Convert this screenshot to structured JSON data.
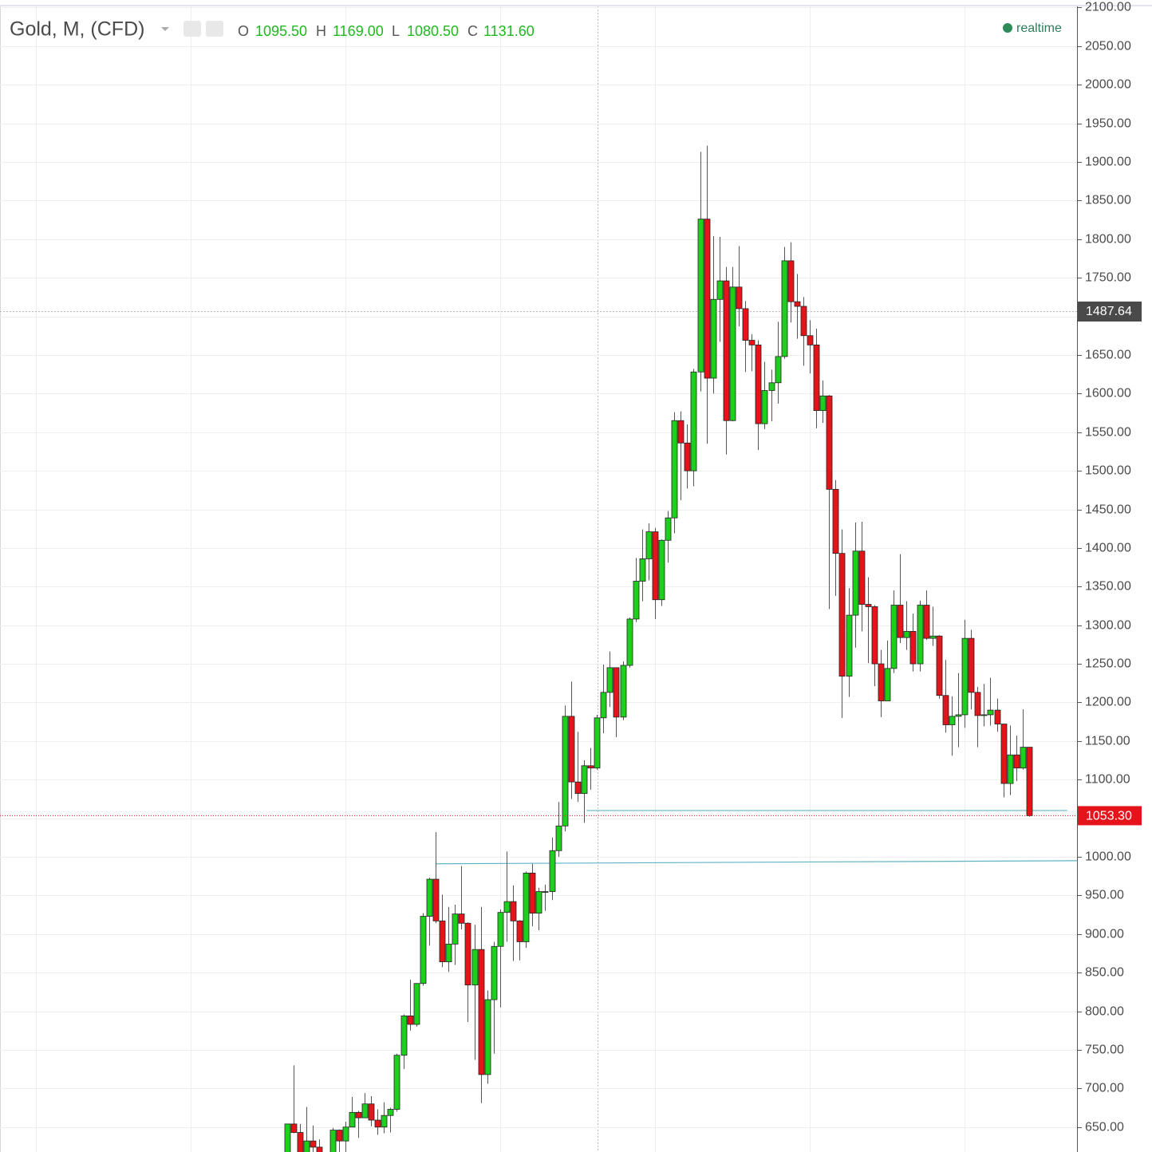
{
  "chart_data": {
    "type": "candlestick",
    "title": "Gold, M, (CFD)",
    "readout": {
      "o_label": "O",
      "o": "1095.50",
      "h_label": "H",
      "h": "1169.00",
      "l_label": "L",
      "l": "1080.50",
      "c_label": "C",
      "c": "1131.60"
    },
    "status": "realtime",
    "crosshair_label": "1487.64",
    "last_price": 1053.3,
    "last_price_label": "1053.30",
    "up_color": "#1ed01e",
    "down_color": "#e5141b",
    "ylim": [
      617.7,
      2101.5
    ],
    "yticks": [
      {
        "value": 650,
        "label": "650.00"
      },
      {
        "value": 700,
        "label": "700.00"
      },
      {
        "value": 750,
        "label": "750.00"
      },
      {
        "value": 800,
        "label": "800.00"
      },
      {
        "value": 850,
        "label": "850.00"
      },
      {
        "value": 900,
        "label": "900.00"
      },
      {
        "value": 950,
        "label": "950.00"
      },
      {
        "value": 1000,
        "label": "1000.00"
      },
      {
        "value": 1050,
        "label": "1050.00"
      },
      {
        "value": 1100,
        "label": "1100.00"
      },
      {
        "value": 1150,
        "label": "1150.00"
      },
      {
        "value": 1200,
        "label": "1200.00"
      },
      {
        "value": 1250,
        "label": "1250.00"
      },
      {
        "value": 1300,
        "label": "1300.00"
      },
      {
        "value": 1350,
        "label": "1350.00"
      },
      {
        "value": 1400,
        "label": "1400.00"
      },
      {
        "value": 1450,
        "label": "1450.00"
      },
      {
        "value": 1500,
        "label": "1500.00"
      },
      {
        "value": 1550,
        "label": "1550.00"
      },
      {
        "value": 1600,
        "label": "1600.00"
      },
      {
        "value": 1650,
        "label": "1650.00"
      },
      {
        "value": 1700,
        "label": "1700.00"
      },
      {
        "value": 1750,
        "label": "1750.00"
      },
      {
        "value": 1800,
        "label": "1800.00"
      },
      {
        "value": 1850,
        "label": "1850.00"
      },
      {
        "value": 1900,
        "label": "1900.00"
      },
      {
        "value": 1950,
        "label": "1950.00"
      },
      {
        "value": 2000,
        "label": "2000.00"
      },
      {
        "value": 2050,
        "label": "2050.00"
      },
      {
        "value": 2100,
        "label": "2100.00"
      }
    ],
    "hidden_ticks": [
      1700
    ],
    "grid": true,
    "trend_lines": [
      [
        [
          23,
          991
        ],
        [
          122.4,
          995
        ]
      ],
      [
        [
          46.4,
          1060
        ],
        [
          120.9,
          1060
        ]
      ]
    ],
    "open": [
      584,
      654,
      643,
      614,
      632,
      624,
      599,
      604,
      646,
      632,
      650,
      669,
      662,
      680,
      659,
      650,
      665,
      673,
      743,
      794,
      783,
      836,
      923,
      971,
      917,
      864,
      887,
      926,
      914,
      834,
      880,
      718,
      815,
      884,
      928,
      942,
      917,
      890,
      979,
      927,
      955,
      955,
      1008,
      1040,
      1182,
      1097,
      1082,
      1118,
      1115,
      1180,
      1213,
      1245,
      1181,
      1248,
      1308,
      1357,
      1386,
      1421,
      1333,
      1410,
      1439,
      1565,
      1536,
      1500,
      1628,
      1826,
      1620,
      1722,
      1746,
      1565,
      1738,
      1710,
      1669,
      1663,
      1561,
      1604,
      1614,
      1648,
      1772,
      1719,
      1713,
      1675,
      1663,
      1578,
      1597,
      1476,
      1393,
      1234,
      1313,
      1396,
      1327,
      1324,
      1250,
      1202,
      1244,
      1326,
      1284,
      1292,
      1250,
      1326,
      1283,
      1286,
      1209,
      1171,
      1182,
      1184,
      1283,
      1213,
      1183,
      1184,
      1190,
      1172,
      1095,
      1132,
      1115,
      1142
    ],
    "high": [
      654,
      730,
      654,
      676,
      652,
      634,
      611,
      649,
      647,
      657,
      689,
      671,
      694,
      690,
      673,
      682,
      675,
      745,
      796,
      841,
      836,
      927,
      973,
      1032,
      951,
      935,
      938,
      988,
      915,
      912,
      935,
      827,
      890,
      932,
      1007,
      963,
      918,
      981,
      991,
      960,
      964,
      1025,
      1071,
      1196,
      1227,
      1162,
      1125,
      1141,
      1184,
      1249,
      1266,
      1245,
      1253,
      1310,
      1387,
      1424,
      1432,
      1426,
      1411,
      1448,
      1576,
      1577,
      1560,
      1632,
      1913,
      1921,
      1804,
      1803,
      1764,
      1764,
      1791,
      1720,
      1677,
      1669,
      1641,
      1631,
      1693,
      1790,
      1796,
      1755,
      1725,
      1695,
      1684,
      1617,
      1598,
      1488,
      1424,
      1348,
      1433,
      1434,
      1362,
      1326,
      1268,
      1280,
      1345,
      1392,
      1331,
      1315,
      1332,
      1345,
      1324,
      1287,
      1255,
      1208,
      1238,
      1307,
      1294,
      1220,
      1224,
      1232,
      1205,
      1172,
      1170,
      1157,
      1191,
      1142
    ],
    "low": [
      582,
      642,
      543,
      606,
      612,
      560,
      561,
      601,
      608,
      603,
      650,
      636,
      662,
      651,
      640,
      642,
      643,
      670,
      725,
      775,
      780,
      833,
      885,
      914,
      857,
      851,
      860,
      906,
      786,
      737,
      681,
      706,
      745,
      805,
      890,
      865,
      866,
      882,
      910,
      905,
      930,
      944,
      1000,
      1033,
      1075,
      1071,
      1044,
      1087,
      1113,
      1160,
      1194,
      1155,
      1177,
      1245,
      1304,
      1331,
      1358,
      1308,
      1325,
      1381,
      1419,
      1462,
      1477,
      1480,
      1603,
      1535,
      1600,
      1667,
      1521,
      1564,
      1687,
      1628,
      1629,
      1527,
      1554,
      1564,
      1587,
      1645,
      1692,
      1671,
      1636,
      1626,
      1555,
      1562,
      1321,
      1338,
      1180,
      1207,
      1271,
      1292,
      1251,
      1221,
      1181,
      1202,
      1238,
      1277,
      1268,
      1240,
      1240,
      1281,
      1273,
      1205,
      1161,
      1131,
      1142,
      1167,
      1191,
      1142,
      1169,
      1170,
      1162,
      1077,
      1080,
      1098,
      1113,
      1052
    ],
    "close": [
      654,
      643,
      614,
      632,
      624,
      599,
      604,
      646,
      632,
      650,
      669,
      662,
      680,
      659,
      650,
      665,
      673,
      743,
      794,
      783,
      836,
      923,
      971,
      917,
      864,
      887,
      926,
      914,
      834,
      880,
      718,
      815,
      884,
      928,
      942,
      917,
      890,
      979,
      927,
      955,
      955,
      1008,
      1040,
      1182,
      1097,
      1082,
      1118,
      1115,
      1180,
      1213,
      1245,
      1181,
      1248,
      1308,
      1357,
      1386,
      1421,
      1333,
      1410,
      1439,
      1565,
      1536,
      1500,
      1628,
      1826,
      1620,
      1722,
      1746,
      1565,
      1738,
      1710,
      1669,
      1663,
      1561,
      1604,
      1614,
      1648,
      1772,
      1719,
      1713,
      1675,
      1663,
      1578,
      1597,
      1476,
      1393,
      1234,
      1313,
      1396,
      1327,
      1324,
      1250,
      1202,
      1244,
      1326,
      1284,
      1292,
      1250,
      1326,
      1283,
      1286,
      1209,
      1171,
      1182,
      1184,
      1283,
      1213,
      1183,
      1184,
      1190,
      1172,
      1095,
      1132,
      1115,
      1142,
      1053.3
    ]
  }
}
